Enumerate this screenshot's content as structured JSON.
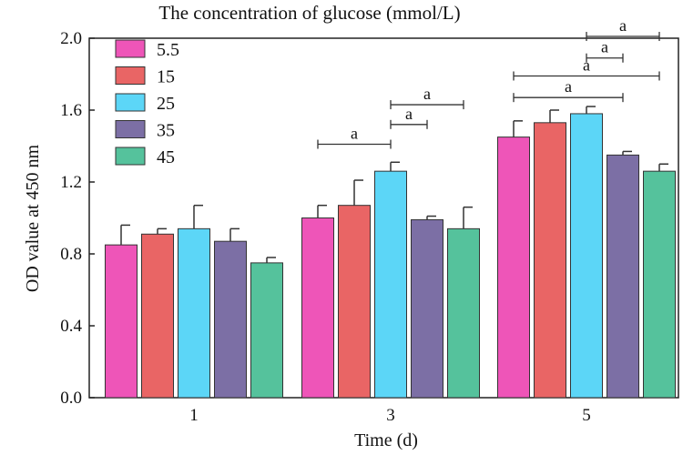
{
  "chart_data": {
    "type": "bar",
    "title": "The concentration of glucose (mmol/L)",
    "xlabel": "Time (d)",
    "ylabel": "OD value at 450 nm",
    "ylim": [
      0,
      2.0
    ],
    "yticks": [
      "0.0",
      "0.4",
      "0.8",
      "1.2",
      "1.6",
      "2.0"
    ],
    "categories": [
      "1",
      "3",
      "5"
    ],
    "series": [
      {
        "name": "5.5",
        "color": "#ee55b8",
        "values": [
          0.85,
          1.0,
          1.45
        ],
        "errors": [
          0.11,
          0.07,
          0.09
        ]
      },
      {
        "name": "15",
        "color": "#e96565",
        "values": [
          0.91,
          1.07,
          1.53
        ],
        "errors": [
          0.03,
          0.14,
          0.07
        ]
      },
      {
        "name": "25",
        "color": "#5cd6f7",
        "values": [
          0.94,
          1.26,
          1.58
        ],
        "errors": [
          0.13,
          0.05,
          0.04
        ]
      },
      {
        "name": "35",
        "color": "#7c6fa5",
        "values": [
          0.87,
          0.99,
          1.35
        ],
        "errors": [
          0.07,
          0.02,
          0.02
        ]
      },
      {
        "name": "45",
        "color": "#55c29c",
        "values": [
          0.75,
          0.94,
          1.26
        ],
        "errors": [
          0.03,
          0.12,
          0.04
        ]
      }
    ],
    "significance": [
      {
        "label": "a",
        "category": 1,
        "from": 0,
        "to": 2,
        "y": 1.41
      },
      {
        "label": "a",
        "category": 1,
        "from": 2,
        "to": 3,
        "y": 1.52
      },
      {
        "label": "a",
        "category": 1,
        "from": 2,
        "to": 4,
        "y": 1.63
      },
      {
        "label": "a",
        "category": 2,
        "from": 0,
        "to": 3,
        "y": 1.67
      },
      {
        "label": "a",
        "category": 2,
        "from": 0,
        "to": 4,
        "y": 1.79
      },
      {
        "label": "a",
        "category": 2,
        "from": 2,
        "to": 3,
        "y": 1.89
      },
      {
        "label": "a",
        "category": 2,
        "from": 2,
        "to": 4,
        "y": 2.01
      }
    ],
    "legend_position": "top-left",
    "grid": false
  }
}
